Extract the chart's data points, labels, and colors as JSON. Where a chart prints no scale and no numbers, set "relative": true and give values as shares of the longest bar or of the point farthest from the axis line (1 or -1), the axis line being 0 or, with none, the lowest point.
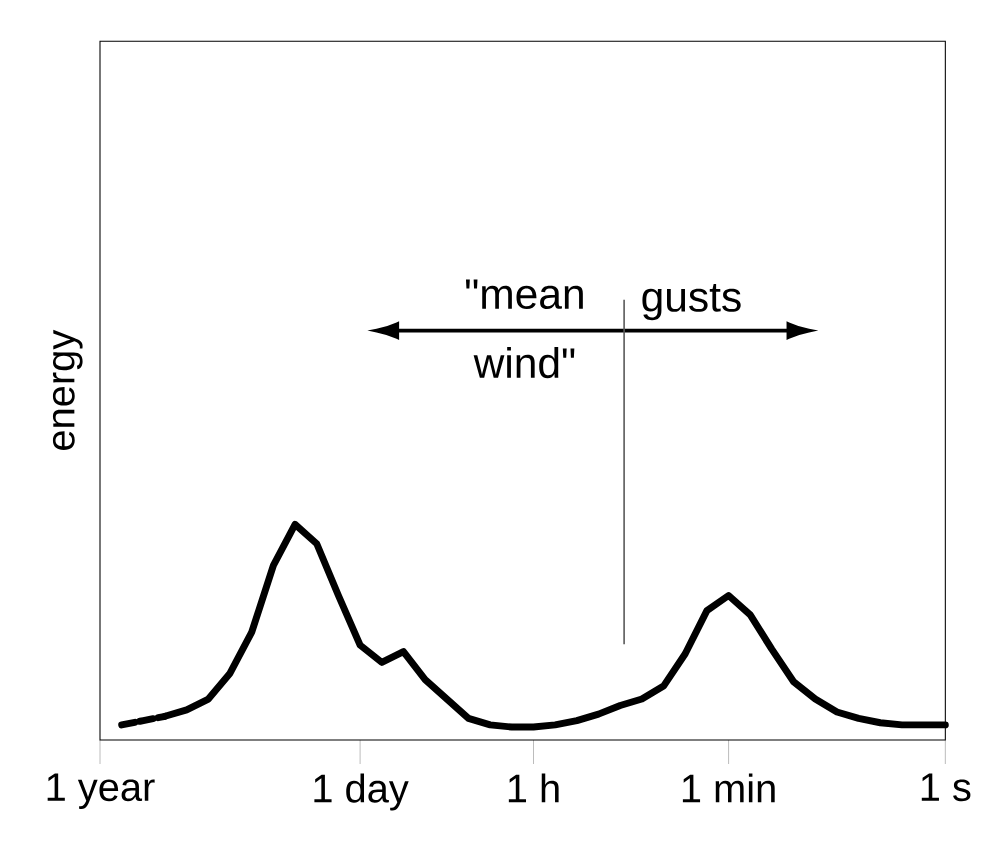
{
  "chart_data": {
    "type": "line",
    "ylabel": "energy",
    "relative": true,
    "categories": [
      "1 year",
      null,
      null,
      null,
      null,
      null,
      null,
      null,
      null,
      null,
      null,
      null,
      "1 day",
      null,
      null,
      null,
      null,
      null,
      null,
      null,
      "1 h",
      null,
      null,
      null,
      null,
      null,
      null,
      null,
      null,
      "1 min",
      null,
      null,
      null,
      null,
      null,
      null,
      null,
      null,
      null,
      "1 s"
    ],
    "marker": "none",
    "grid": false,
    "series": [
      {
        "color": "#000000",
        "line_style": "dashed",
        "values": [
          null,
          0.07,
          0.09,
          0.11,
          null,
          null,
          null,
          null,
          null,
          null,
          null,
          null,
          null,
          null,
          null,
          null,
          null,
          null,
          null,
          null,
          null,
          null,
          null,
          null,
          null,
          null,
          null,
          null,
          null,
          null,
          null,
          null,
          null,
          null,
          null,
          null,
          null,
          null,
          null,
          null
        ]
      },
      {
        "color": "#000000",
        "line_style": "solid",
        "values": [
          null,
          null,
          null,
          0.11,
          0.14,
          0.19,
          0.31,
          0.5,
          0.81,
          1.0,
          0.91,
          0.67,
          0.44,
          0.36,
          0.41,
          0.28,
          0.19,
          0.1,
          0.07,
          0.06,
          0.06,
          0.07,
          0.09,
          0.12,
          0.16,
          0.19,
          0.25,
          0.4,
          0.6,
          0.67,
          0.58,
          0.42,
          0.27,
          0.19,
          0.13,
          0.1,
          0.08,
          0.07,
          0.07,
          0.07
        ]
      }
    ],
    "annotations": [
      "\"mean wind\"",
      "gusts"
    ]
  }
}
